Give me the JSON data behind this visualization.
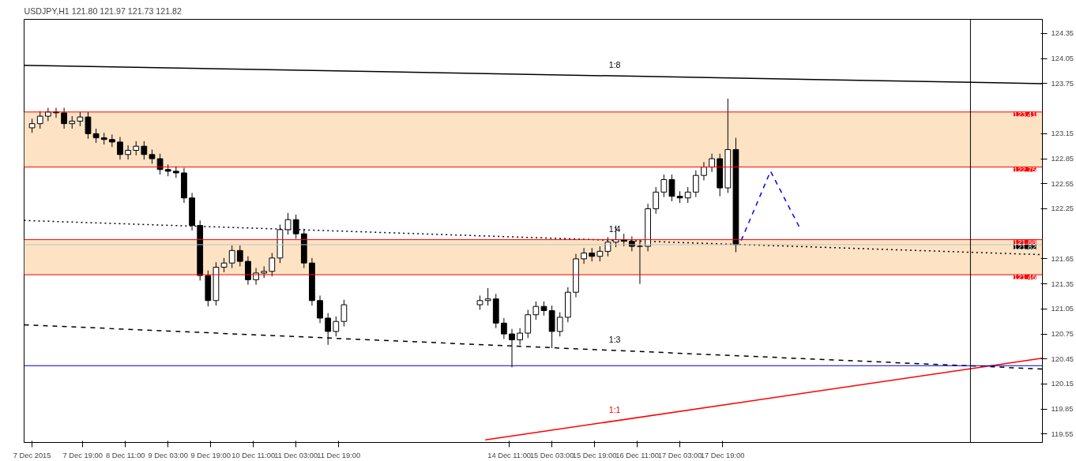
{
  "chart_data": {
    "type": "candlestick",
    "title": "USDJPY,H1  121.80 121.97 121.73 121.82",
    "x": [
      "2015-12-07T00:00",
      "2015-12-07T03:00",
      "2015-12-07T06:00",
      "2015-12-07T09:00",
      "2015-12-07T12:00",
      "2015-12-07T15:00",
      "2015-12-07T18:00",
      "2015-12-07T21:00",
      "2015-12-08T00:00",
      "2015-12-08T03:00",
      "2015-12-08T06:00",
      "2015-12-08T09:00",
      "2015-12-08T12:00",
      "2015-12-08T15:00",
      "2015-12-08T18:00",
      "2015-12-08T21:00",
      "2015-12-09T00:00",
      "2015-12-09T03:00",
      "2015-12-09T06:00",
      "2015-12-09T09:00",
      "2015-12-09T12:00",
      "2015-12-09T15:00",
      "2015-12-09T18:00",
      "2015-12-09T21:00",
      "2015-12-10T00:00",
      "2015-12-10T03:00",
      "2015-12-10T06:00",
      "2015-12-10T09:00",
      "2015-12-10T12:00",
      "2015-12-10T15:00",
      "2015-12-10T18:00",
      "2015-12-10T21:00",
      "2015-12-11T00:00",
      "2015-12-11T03:00",
      "2015-12-11T06:00",
      "2015-12-11T09:00",
      "2015-12-11T12:00",
      "2015-12-11T15:00",
      "2015-12-11T18:00",
      "2015-12-11T21:00",
      "2015-12-14T00:00",
      "2015-12-14T03:00",
      "2015-12-14T06:00",
      "2015-12-14T09:00",
      "2015-12-14T12:00",
      "2015-12-14T15:00",
      "2015-12-14T18:00",
      "2015-12-14T21:00",
      "2015-12-15T00:00",
      "2015-12-15T03:00",
      "2015-12-15T06:00",
      "2015-12-15T09:00",
      "2015-12-15T12:00",
      "2015-12-15T15:00",
      "2015-12-15T18:00",
      "2015-12-15T21:00",
      "2015-12-16T00:00",
      "2015-12-16T03:00",
      "2015-12-16T06:00",
      "2015-12-16T09:00",
      "2015-12-16T12:00",
      "2015-12-16T15:00",
      "2015-12-16T18:00",
      "2015-12-16T21:00",
      "2015-12-17T00:00",
      "2015-12-17T03:00",
      "2015-12-17T06:00",
      "2015-12-17T09:00",
      "2015-12-17T12:00",
      "2015-12-17T15:00",
      "2015-12-17T18:00",
      "2015-12-17T21:00",
      "2015-12-18T00:00"
    ],
    "ohlc": [
      [
        123.22,
        123.33,
        123.16,
        123.27
      ],
      [
        123.27,
        123.42,
        123.21,
        123.36
      ],
      [
        123.36,
        123.46,
        123.3,
        123.41
      ],
      [
        123.41,
        123.46,
        123.34,
        123.4
      ],
      [
        123.4,
        123.46,
        123.21,
        123.27
      ],
      [
        123.27,
        123.36,
        123.21,
        123.3
      ],
      [
        123.3,
        123.41,
        123.24,
        123.35
      ],
      [
        123.35,
        123.41,
        123.09,
        123.15
      ],
      [
        123.15,
        123.21,
        123.04,
        123.1
      ],
      [
        123.1,
        123.16,
        123.02,
        123.08
      ],
      [
        123.08,
        123.14,
        122.99,
        123.05
      ],
      [
        123.05,
        123.11,
        122.84,
        122.9
      ],
      [
        122.9,
        123.01,
        122.84,
        122.95
      ],
      [
        122.95,
        123.06,
        122.89,
        123.0
      ],
      [
        123.0,
        123.06,
        122.84,
        122.9
      ],
      [
        122.9,
        122.96,
        122.79,
        122.85
      ],
      [
        122.85,
        122.91,
        122.66,
        122.72
      ],
      [
        122.72,
        122.78,
        122.64,
        122.7
      ],
      [
        122.7,
        122.76,
        122.62,
        122.68
      ],
      [
        122.68,
        122.74,
        122.32,
        122.38
      ],
      [
        122.38,
        122.44,
        121.99,
        122.05
      ],
      [
        122.05,
        122.11,
        121.39,
        121.45
      ],
      [
        121.45,
        121.51,
        121.08,
        121.15
      ],
      [
        121.15,
        121.61,
        121.09,
        121.55
      ],
      [
        121.55,
        121.66,
        121.49,
        121.6
      ],
      [
        121.6,
        121.81,
        121.54,
        121.75
      ],
      [
        121.75,
        121.81,
        121.56,
        121.62
      ],
      [
        121.62,
        121.68,
        121.34,
        121.4
      ],
      [
        121.4,
        121.54,
        121.34,
        121.48
      ],
      [
        121.48,
        121.56,
        121.42,
        121.5
      ],
      [
        121.5,
        121.72,
        121.44,
        121.66
      ],
      [
        121.66,
        122.06,
        121.6,
        122.0
      ],
      [
        122.0,
        122.2,
        121.94,
        122.12
      ],
      [
        122.12,
        122.18,
        121.89,
        121.95
      ],
      [
        121.95,
        122.01,
        121.54,
        121.6
      ],
      [
        121.6,
        121.66,
        121.09,
        121.15
      ],
      [
        121.15,
        121.21,
        120.88,
        120.94
      ],
      [
        120.94,
        121.0,
        120.62,
        120.78
      ],
      [
        120.78,
        120.96,
        120.72,
        120.9
      ],
      [
        120.9,
        121.16,
        120.84,
        121.1
      ],
      [
        121.1,
        121.21,
        121.04,
        121.15
      ],
      [
        121.15,
        121.3,
        121.09,
        121.17
      ],
      [
        121.17,
        121.23,
        120.82,
        120.88
      ],
      [
        120.88,
        120.94,
        120.69,
        120.75
      ],
      [
        120.75,
        120.81,
        120.35,
        120.68
      ],
      [
        120.68,
        120.82,
        120.62,
        120.76
      ],
      [
        120.76,
        121.04,
        120.7,
        120.98
      ],
      [
        120.98,
        121.14,
        120.92,
        121.08
      ],
      [
        121.08,
        121.14,
        120.97,
        121.03
      ],
      [
        121.03,
        121.09,
        120.58,
        120.78
      ],
      [
        120.78,
        121.01,
        120.72,
        120.95
      ],
      [
        120.95,
        121.31,
        120.89,
        121.25
      ],
      [
        121.25,
        121.71,
        121.19,
        121.65
      ],
      [
        121.65,
        121.78,
        121.59,
        121.72
      ],
      [
        121.72,
        121.78,
        121.62,
        121.68
      ],
      [
        121.68,
        121.8,
        121.62,
        121.74
      ],
      [
        121.74,
        121.91,
        121.68,
        121.85
      ],
      [
        121.85,
        122.05,
        121.79,
        121.88
      ],
      [
        121.88,
        121.95,
        121.8,
        121.86
      ],
      [
        121.86,
        121.92,
        121.74,
        121.8
      ],
      [
        121.8,
        121.88,
        121.35,
        121.8
      ],
      [
        121.8,
        122.31,
        121.74,
        122.25
      ],
      [
        122.25,
        122.51,
        122.19,
        122.45
      ],
      [
        122.45,
        122.66,
        122.39,
        122.6
      ],
      [
        122.6,
        122.66,
        122.34,
        122.4
      ],
      [
        122.4,
        122.46,
        122.32,
        122.38
      ],
      [
        122.38,
        122.51,
        122.32,
        122.45
      ],
      [
        122.45,
        122.71,
        122.39,
        122.65
      ],
      [
        122.65,
        122.81,
        122.59,
        122.75
      ],
      [
        122.75,
        122.91,
        122.69,
        122.85
      ],
      [
        122.85,
        122.91,
        122.4,
        122.5
      ],
      [
        122.5,
        123.57,
        122.44,
        122.96
      ],
      [
        122.96,
        123.1,
        121.73,
        121.82
      ]
    ],
    "series": [
      {
        "type": "line",
        "name": "1:8",
        "x": [
          "2015-12-06T21:00",
          "2015-12-22T19:00"
        ],
        "values": [
          123.97,
          123.75
        ],
        "color": "#000000",
        "line_style": "solid"
      },
      {
        "type": "line",
        "name": "1:4",
        "x": [
          "2015-12-06T21:00",
          "2015-12-22T19:00"
        ],
        "values": [
          122.11,
          121.7
        ],
        "color": "#000000",
        "line_style": "dotted"
      },
      {
        "type": "line",
        "name": "1:3",
        "x": [
          "2015-12-06T21:00",
          "2015-12-22T19:00"
        ],
        "values": [
          120.86,
          120.33
        ],
        "color": "#000000",
        "line_style": "dashed"
      },
      {
        "type": "line",
        "name": "1:1",
        "x": [
          "2015-12-14T02:00",
          "2015-12-22T19:00"
        ],
        "values": [
          119.48,
          120.46
        ],
        "color": "#ff0000",
        "line_style": "solid"
      },
      {
        "type": "line",
        "x": [
          "2015-12-18T02:00",
          "2015-12-18T13:00",
          "2015-12-19T00:00"
        ],
        "values": [
          121.87,
          122.7,
          122.02
        ],
        "color": "#0000ff",
        "line_style": "dashed"
      }
    ],
    "ref_lines": [
      {
        "axis": "y",
        "value": 123.41,
        "label": "123.41",
        "color": "#ff0000"
      },
      {
        "axis": "y",
        "value": 122.75,
        "label": "122.75",
        "color": "#ff0000"
      },
      {
        "axis": "y",
        "value": 121.88,
        "label": "121.88",
        "color": "#ff0000"
      },
      {
        "axis": "y",
        "value": 121.82,
        "label": "121.82",
        "color": "#c0c0c0"
      },
      {
        "axis": "y",
        "value": 121.46,
        "label": "121.46",
        "color": "#ff0000"
      },
      {
        "axis": "y",
        "value": 120.37,
        "color": "#0000cc"
      },
      {
        "axis": "x",
        "value": "2015-12-21T16:00",
        "color": "#000000"
      }
    ],
    "bands": [
      {
        "axis": "y",
        "from": 122.75,
        "to": 123.41,
        "color": "#fde3c4"
      },
      {
        "axis": "y",
        "from": 121.46,
        "to": 121.88,
        "color": "#fde3c4"
      }
    ],
    "xlim": [
      "2015-12-06T21:00",
      "2015-12-22T19:00"
    ],
    "ylim": [
      119.45,
      124.52
    ],
    "xticks": [
      {
        "value": "2015-12-07T00:00",
        "label": "7 Dec 2015"
      },
      {
        "value": "2015-12-07T19:00",
        "label": "7 Dec 19:00"
      },
      {
        "value": "2015-12-08T11:00",
        "label": "8 Dec 11:00"
      },
      {
        "value": "2015-12-09T03:00",
        "label": "9 Dec 03:00"
      },
      {
        "value": "2015-12-09T19:00",
        "label": "9 Dec 19:00"
      },
      {
        "value": "2015-12-10T11:00",
        "label": "10 Dec 11:00"
      },
      {
        "value": "2015-12-11T03:00",
        "label": "11 Dec 03:00"
      },
      {
        "value": "2015-12-11T19:00",
        "label": "11 Dec 19:00"
      },
      {
        "value": "2015-12-14T11:00",
        "label": "14 Dec 11:00"
      },
      {
        "value": "2015-12-15T03:00",
        "label": "15 Dec 03:00"
      },
      {
        "value": "2015-12-15T19:00",
        "label": "15 Dec 19:00"
      },
      {
        "value": "2015-12-16T11:00",
        "label": "16 Dec 11:00"
      },
      {
        "value": "2015-12-17T03:00",
        "label": "17 Dec 03:00"
      },
      {
        "value": "2015-12-17T19:00",
        "label": "17 Dec 19:00"
      }
    ],
    "yticks": [
      119.55,
      119.85,
      120.15,
      120.45,
      120.75,
      121.05,
      121.35,
      121.65,
      122.25,
      122.55,
      122.85,
      123.15,
      123.75,
      124.05,
      124.35
    ],
    "grid": false
  }
}
